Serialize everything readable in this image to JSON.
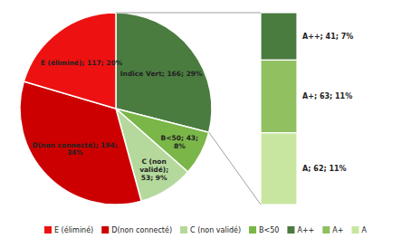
{
  "chart_data": [
    {
      "type": "pie",
      "categories": [
        null,
        "B<50",
        "C (non validé)",
        "D(non connecté)",
        "E (éliminé)"
      ],
      "values": [
        166,
        43,
        53,
        194,
        117
      ],
      "value_labels": [
        "Indice Vert; 166; 29%",
        "B<50; 43;\n8%",
        "C (non\nvalidé);\n53; 9%",
        "D(non connecté); 194;\n34%",
        "E (éliminé); 117; 20%"
      ],
      "colors": [
        "#4a7c3f",
        "#7ab648",
        "#b5d99c",
        "#cc0000",
        "#ee1111"
      ],
      "data_labels": true,
      "legend": "bottom"
    },
    {
      "type": "bar",
      "stacked": true,
      "categories": [
        null
      ],
      "series": [
        {
          "name": "A++",
          "color": "#4a7c3f",
          "values": [
            41
          ],
          "value_labels": [
            "A++; 41; 7%"
          ]
        },
        {
          "name": "A+",
          "color": "#90c060",
          "values": [
            63
          ],
          "value_labels": [
            "A+; 63; 11%"
          ]
        },
        {
          "name": "A",
          "color": "#c8e6a0",
          "values": [
            62
          ],
          "value_labels": [
            "A; 62; 11%"
          ]
        }
      ],
      "ylim": [
        0,
        166
      ],
      "data_labels": true,
      "tick_labels": false,
      "legend": "bottom"
    }
  ]
}
